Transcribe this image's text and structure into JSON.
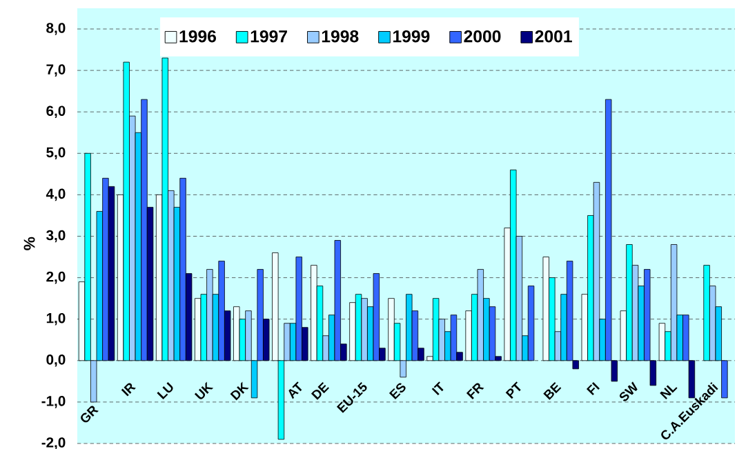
{
  "chart_data": {
    "type": "bar",
    "ylabel": "%",
    "categories": [
      "GR",
      "IR",
      "LU",
      "UK",
      "DK",
      "AT",
      "DE",
      "EU-15",
      "ES",
      "IT",
      "FR",
      "PT",
      "BE",
      "FI",
      "SW",
      "NL",
      "C.A.Euskadi"
    ],
    "series": [
      {
        "name": "1996",
        "color": "#f0ffff",
        "values": [
          1.9,
          4.0,
          4.0,
          1.5,
          1.3,
          2.6,
          2.3,
          1.4,
          1.5,
          0.1,
          1.2,
          3.2,
          2.5,
          1.6,
          1.2,
          0.9,
          null
        ]
      },
      {
        "name": "1997",
        "color": "#00ffff",
        "values": [
          5.0,
          7.2,
          7.3,
          1.6,
          1.0,
          -1.9,
          1.8,
          1.6,
          0.9,
          1.5,
          1.6,
          4.6,
          2.0,
          3.5,
          2.8,
          0.7,
          2.3
        ]
      },
      {
        "name": "1998",
        "color": "#99ccff",
        "values": [
          -1.0,
          5.9,
          4.1,
          2.2,
          1.2,
          0.9,
          0.6,
          1.5,
          -0.4,
          1.0,
          2.2,
          3.0,
          0.7,
          4.3,
          2.3,
          2.8,
          1.8
        ]
      },
      {
        "name": "1999",
        "color": "#00ccff",
        "values": [
          3.6,
          5.5,
          3.7,
          1.6,
          -0.9,
          0.9,
          1.1,
          1.3,
          1.6,
          0.7,
          1.5,
          0.6,
          1.6,
          1.0,
          1.8,
          1.1,
          1.3
        ]
      },
      {
        "name": "2000",
        "color": "#3366ff",
        "values": [
          4.4,
          6.3,
          4.4,
          2.4,
          2.2,
          2.5,
          2.9,
          2.1,
          1.2,
          1.1,
          1.3,
          1.8,
          2.4,
          6.3,
          2.2,
          1.1,
          -0.9
        ]
      },
      {
        "name": "2001",
        "color": "#000080",
        "values": [
          4.2,
          3.7,
          2.1,
          1.2,
          1.0,
          0.8,
          0.4,
          0.3,
          0.3,
          0.2,
          0.1,
          null,
          -0.2,
          -0.5,
          -0.6,
          -0.9,
          null
        ]
      }
    ],
    "ylim": [
      -2,
      8
    ],
    "yticks": [
      {
        "value": -2,
        "label": "-2,0"
      },
      {
        "value": -1,
        "label": "-1,0"
      },
      {
        "value": 0,
        "label": "0,0"
      },
      {
        "value": 1,
        "label": "1,0"
      },
      {
        "value": 2,
        "label": "2,0"
      },
      {
        "value": 3,
        "label": "3,0"
      },
      {
        "value": 4,
        "label": "4,0"
      },
      {
        "value": 5,
        "label": "5,0"
      },
      {
        "value": 6,
        "label": "6,0"
      },
      {
        "value": 7,
        "label": "7,0"
      },
      {
        "value": 8,
        "label": "8,0"
      }
    ],
    "grid": "y",
    "legend": "top"
  }
}
